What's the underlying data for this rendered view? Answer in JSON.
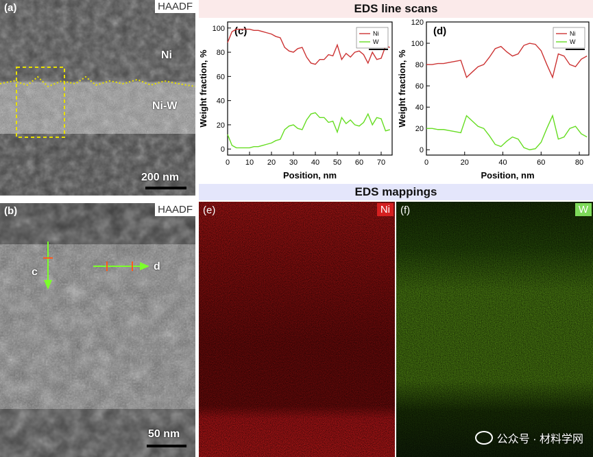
{
  "panel_a": {
    "tag": "(a)",
    "mode": "HAADF",
    "label_top": "Ni",
    "label_layer": "Ni-W",
    "scale": "200 nm"
  },
  "panel_b": {
    "tag": "(b)",
    "mode": "HAADF",
    "marker_c": "c",
    "marker_d": "d",
    "scale": "50 nm"
  },
  "line_scans": {
    "title": "EDS line scans"
  },
  "mappings": {
    "title": "EDS mappings",
    "e": {
      "tag": "(e)",
      "element": "Ni",
      "color": "#c8141c"
    },
    "f": {
      "tag": "(f)",
      "element": "W",
      "color": "#2f6b0a"
    }
  },
  "watermark": "公众号 · 材料学网",
  "colors": {
    "ni": "#cc3333",
    "w": "#66dd22"
  },
  "chart_data": [
    {
      "type": "line",
      "tag": "(c)",
      "xlabel": "Position, nm",
      "ylabel": "Weight fraction, %",
      "xlim": [
        0,
        75
      ],
      "ylim": [
        -5,
        105
      ],
      "xticks": [
        0,
        10,
        20,
        30,
        40,
        50,
        60,
        70
      ],
      "yticks": [
        0,
        20,
        40,
        60,
        80,
        100
      ],
      "legend": "top-right",
      "series": [
        {
          "name": "Ni",
          "x": [
            0,
            2,
            4,
            6,
            8,
            10,
            12,
            14,
            16,
            18,
            20,
            22,
            24,
            26,
            28,
            30,
            32,
            34,
            36,
            38,
            40,
            42,
            44,
            46,
            48,
            50,
            52,
            54,
            56,
            58,
            60,
            62,
            64,
            66,
            68,
            70,
            72,
            74
          ],
          "values": [
            88,
            97,
            99,
            99,
            99,
            99,
            98,
            98,
            97,
            96,
            95,
            93,
            92,
            84,
            81,
            80,
            83,
            84,
            76,
            71,
            70,
            74,
            74,
            78,
            77,
            86,
            74,
            79,
            76,
            80,
            81,
            78,
            71,
            80,
            74,
            75,
            85,
            84
          ]
        },
        {
          "name": "W",
          "x": [
            0,
            2,
            4,
            6,
            8,
            10,
            12,
            14,
            16,
            18,
            20,
            22,
            24,
            26,
            28,
            30,
            32,
            34,
            36,
            38,
            40,
            42,
            44,
            46,
            48,
            50,
            52,
            54,
            56,
            58,
            60,
            62,
            64,
            66,
            68,
            70,
            72,
            74
          ],
          "values": [
            12,
            3,
            1,
            1,
            1,
            1,
            2,
            2,
            3,
            4,
            5,
            7,
            8,
            16,
            19,
            20,
            17,
            16,
            24,
            29,
            30,
            26,
            26,
            22,
            23,
            14,
            26,
            21,
            24,
            20,
            19,
            22,
            29,
            20,
            26,
            25,
            15,
            16
          ]
        }
      ]
    },
    {
      "type": "line",
      "tag": "(d)",
      "xlabel": "Position, nm",
      "ylabel": "Weight fraction, %",
      "xlim": [
        0,
        85
      ],
      "ylim": [
        -5,
        120
      ],
      "xticks": [
        0,
        20,
        40,
        60,
        80
      ],
      "yticks": [
        0,
        20,
        40,
        60,
        80,
        100,
        120
      ],
      "legend": "top-right",
      "series": [
        {
          "name": "Ni",
          "x": [
            0,
            3,
            6,
            9,
            12,
            15,
            18,
            21,
            24,
            27,
            30,
            33,
            36,
            39,
            42,
            45,
            48,
            51,
            54,
            57,
            60,
            63,
            66,
            69,
            72,
            75,
            78,
            81,
            84
          ],
          "values": [
            80,
            80,
            81,
            81,
            82,
            83,
            84,
            68,
            73,
            78,
            80,
            87,
            95,
            97,
            92,
            88,
            90,
            98,
            100,
            99,
            93,
            80,
            68,
            90,
            88,
            80,
            78,
            85,
            88
          ]
        },
        {
          "name": "W",
          "x": [
            0,
            3,
            6,
            9,
            12,
            15,
            18,
            21,
            24,
            27,
            30,
            33,
            36,
            39,
            42,
            45,
            48,
            51,
            54,
            57,
            60,
            63,
            66,
            69,
            72,
            75,
            78,
            81,
            84
          ],
          "values": [
            20,
            20,
            19,
            19,
            18,
            17,
            16,
            32,
            27,
            22,
            20,
            13,
            5,
            3,
            8,
            12,
            10,
            2,
            0,
            1,
            7,
            20,
            32,
            10,
            12,
            20,
            22,
            15,
            12
          ]
        }
      ]
    }
  ]
}
